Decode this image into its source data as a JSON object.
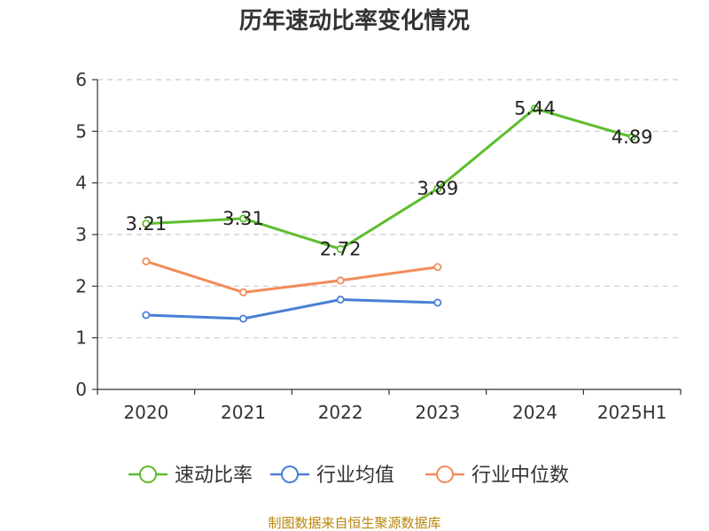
{
  "chart_data": {
    "type": "line",
    "title": "历年速动比率变化情况",
    "categories": [
      "2020",
      "2021",
      "2022",
      "2023",
      "2024",
      "2025H1"
    ],
    "y_ticks": [
      "0",
      "1",
      "2",
      "3",
      "4",
      "5",
      "6"
    ],
    "ylim": [
      0,
      6
    ],
    "grid": true,
    "legend_position": "bottom",
    "series": [
      {
        "name": "速动比率",
        "color": "#5dbe2d",
        "values": [
          3.21,
          3.31,
          2.72,
          3.89,
          5.44,
          4.89
        ],
        "labels": [
          "3.21",
          "3.31",
          "2.72",
          "3.89",
          "5.44",
          "4.89"
        ],
        "show_labels": true
      },
      {
        "name": "行业均值",
        "color": "#4a7fd6",
        "values": [
          1.44,
          1.37,
          1.74,
          1.68,
          null,
          null
        ]
      },
      {
        "name": "行业中位数",
        "color": "#f28c5a",
        "values": [
          2.48,
          1.88,
          2.11,
          2.37,
          null,
          null
        ]
      }
    ]
  },
  "source": "制图数据来自恒生聚源数据库"
}
